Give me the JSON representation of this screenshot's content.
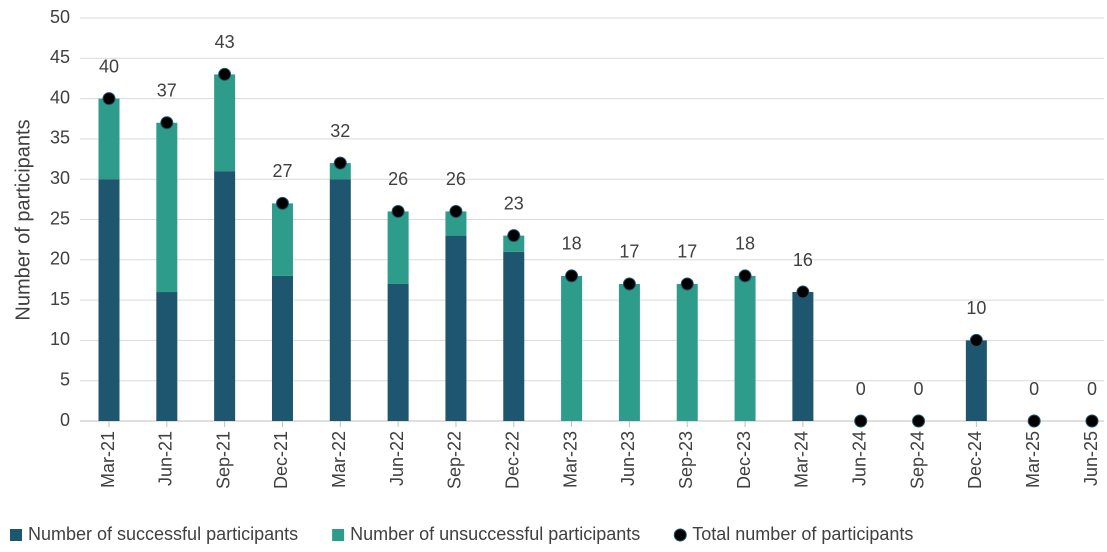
{
  "chart_data": {
    "type": "bar",
    "stacked": true,
    "y_label": "Number of participants",
    "categories": [
      "Mar-21",
      "Jun-21",
      "Sep-21",
      "Dec-21",
      "Mar-22",
      "Jun-22",
      "Sep-22",
      "Dec-22",
      "Mar-23",
      "Jun-23",
      "Sep-23",
      "Dec-23",
      "Mar-24",
      "Jun-24",
      "Sep-24",
      "Dec-24",
      "Mar-25",
      "Jun-25"
    ],
    "series": [
      {
        "name": "Number of successful participants",
        "color": "#1d566e",
        "values": [
          30,
          16,
          31,
          18,
          30,
          17,
          23,
          21,
          0,
          0,
          0,
          0,
          16,
          0,
          0,
          10,
          0,
          0
        ]
      },
      {
        "name": "Number of unsuccessful participants",
        "color": "#2e9c8a",
        "values": [
          10,
          21,
          12,
          9,
          2,
          9,
          3,
          2,
          18,
          17,
          17,
          18,
          0,
          0,
          0,
          0,
          0,
          0
        ]
      },
      {
        "name": "Total number of participants",
        "color": "#000000",
        "type": "scatter",
        "values": [
          40,
          37,
          43,
          27,
          32,
          26,
          26,
          23,
          18,
          17,
          17,
          18,
          16,
          0,
          0,
          10,
          0,
          0
        ]
      }
    ],
    "ylim": [
      0,
      50
    ],
    "yticks": [
      0,
      5,
      10,
      15,
      20,
      25,
      30,
      35,
      40,
      45,
      50
    ],
    "grid": true,
    "legend": "bottom"
  }
}
